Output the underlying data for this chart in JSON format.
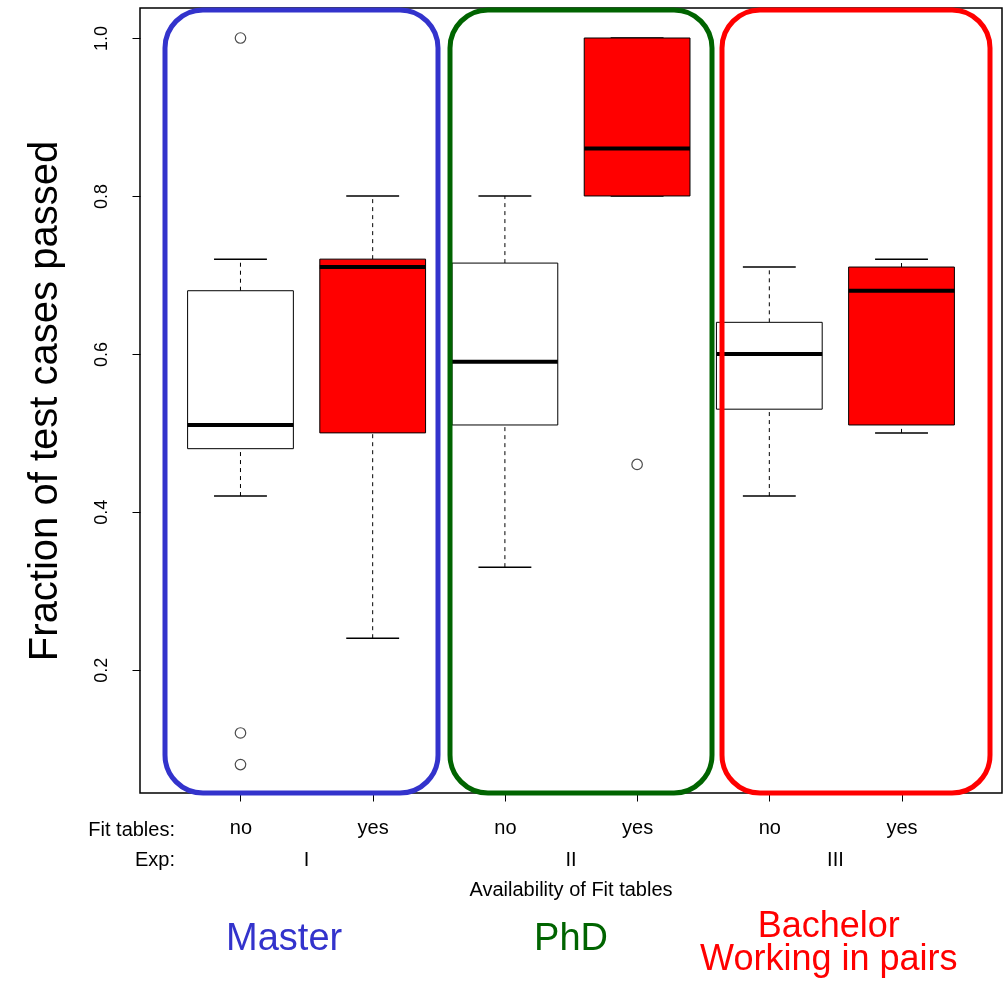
{
  "chart_data": {
    "type": "box",
    "ylabel": "Fraction of test cases passed",
    "xlabel": "Availability of Fit tables",
    "categories": [
      "no",
      "yes",
      "no",
      "yes",
      "no",
      "yes"
    ],
    "colors": [
      "#ffffff",
      "#ff0000",
      "#ffffff",
      "#ff0000",
      "#ffffff",
      "#ff0000"
    ],
    "boxes": [
      {
        "low": 0.42,
        "q1": 0.48,
        "median": 0.51,
        "q3": 0.68,
        "high": 0.72,
        "outliers": [
          1.0,
          0.12,
          0.08
        ]
      },
      {
        "low": 0.24,
        "q1": 0.5,
        "median": 0.71,
        "q3": 0.72,
        "high": 0.8
      },
      {
        "low": 0.33,
        "q1": 0.51,
        "median": 0.59,
        "q3": 0.715,
        "high": 0.8
      },
      {
        "low": 0.8,
        "q1": 0.8,
        "median": 0.86,
        "q3": 1.0,
        "high": 1.0,
        "outliers": [
          0.46
        ]
      },
      {
        "low": 0.42,
        "q1": 0.53,
        "median": 0.6,
        "q3": 0.64,
        "high": 0.71
      },
      {
        "low": 0.5,
        "q1": 0.51,
        "median": 0.68,
        "q3": 0.71,
        "high": 0.72
      }
    ],
    "ylim": [
      0.044,
      1.038
    ],
    "yticks": [
      {
        "value": 0.2,
        "label": "0.2"
      },
      {
        "value": 0.4,
        "label": "0.4"
      },
      {
        "value": 0.6,
        "label": "0.6"
      },
      {
        "value": 0.8,
        "label": "0.8"
      },
      {
        "value": 1.0,
        "label": "1.0"
      }
    ],
    "grid": false,
    "annotations": [
      "Fit tables:",
      "Exp:",
      "I",
      "II",
      "III",
      "Master",
      "PhD",
      "Bachelor",
      "Working in pairs"
    ]
  }
}
